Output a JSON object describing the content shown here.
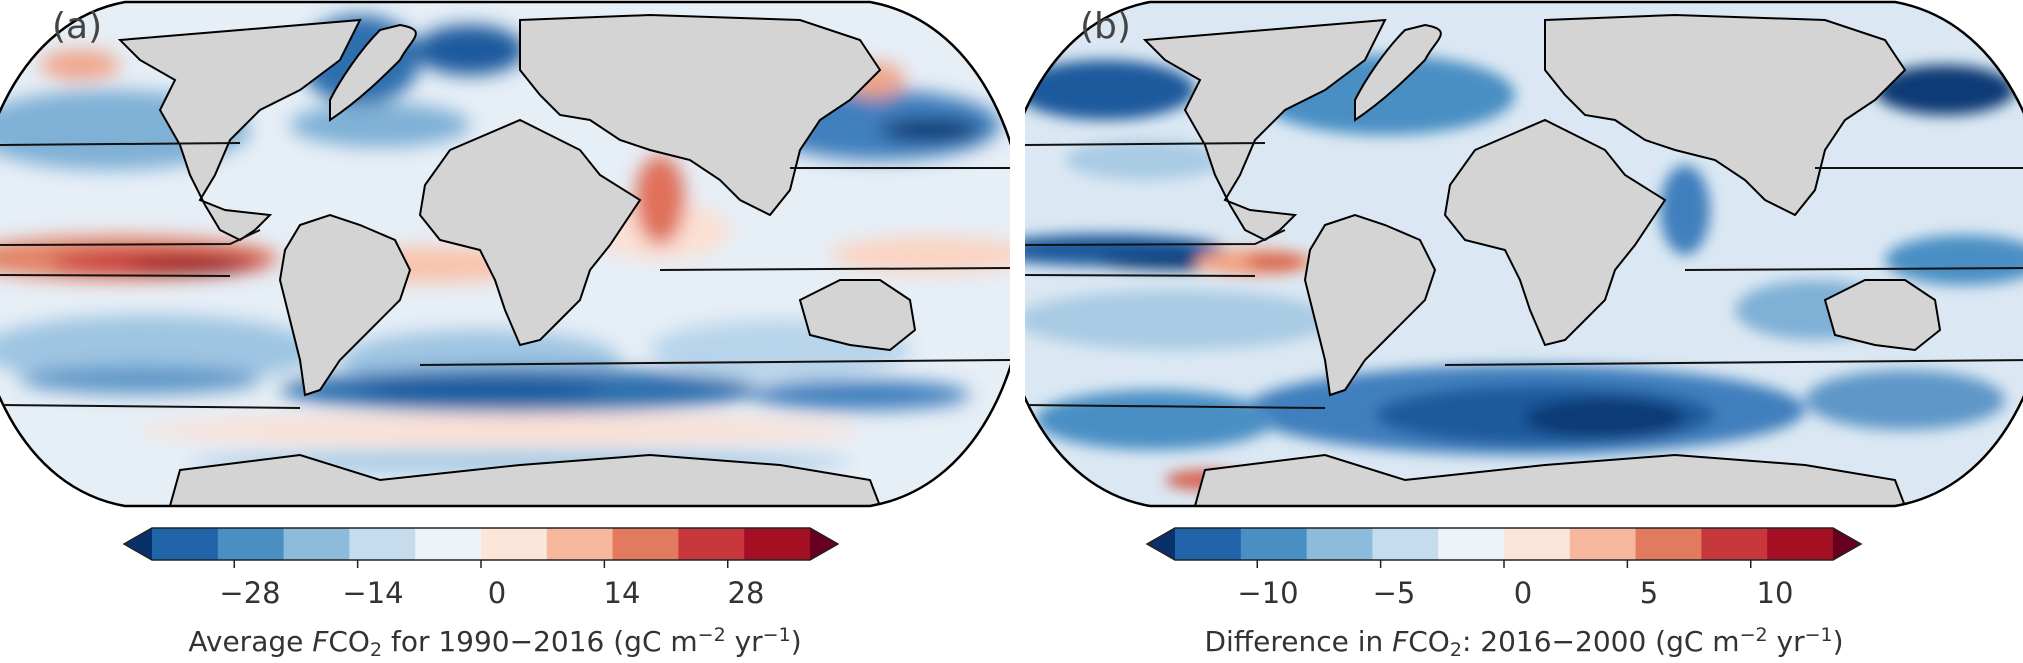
{
  "panels": [
    {
      "label": "(a)",
      "cbar": {
        "ticks": [
          "−28",
          "−14",
          "0",
          "14",
          "28"
        ],
        "title": {
          "pre": "Average ",
          "var": "F",
          "co": "CO",
          "sub": "2",
          "mid": " for 1990−2016 (gC m",
          "sup1": "−2",
          "mid2": " yr",
          "sup2": "−1",
          "post": ")"
        },
        "colors": [
          "#08306b",
          "#1f63a8",
          "#4a8fc4",
          "#8dbbdb",
          "#c5dcee",
          "#edf3f9",
          "#fce5d9",
          "#f6b79d",
          "#e27a60",
          "#c6383c",
          "#a50f24",
          "#67001f"
        ]
      }
    },
    {
      "label": "(b)",
      "cbar": {
        "ticks": [
          "−10",
          "−5",
          "0",
          "5",
          "10"
        ],
        "title": {
          "pre": "Difference in ",
          "var": "F",
          "co": "CO",
          "sub": "2",
          "mid": ": 2016−2000 (gC m",
          "sup1": "−2",
          "mid2": " yr",
          "sup2": "−1",
          "post": ")"
        },
        "colors": [
          "#08306b",
          "#1f63a8",
          "#4a8fc4",
          "#8dbbdb",
          "#c5dcee",
          "#edf3f9",
          "#fce5d9",
          "#f6b79d",
          "#e27a60",
          "#c6383c",
          "#a50f24",
          "#67001f"
        ]
      }
    }
  ]
}
